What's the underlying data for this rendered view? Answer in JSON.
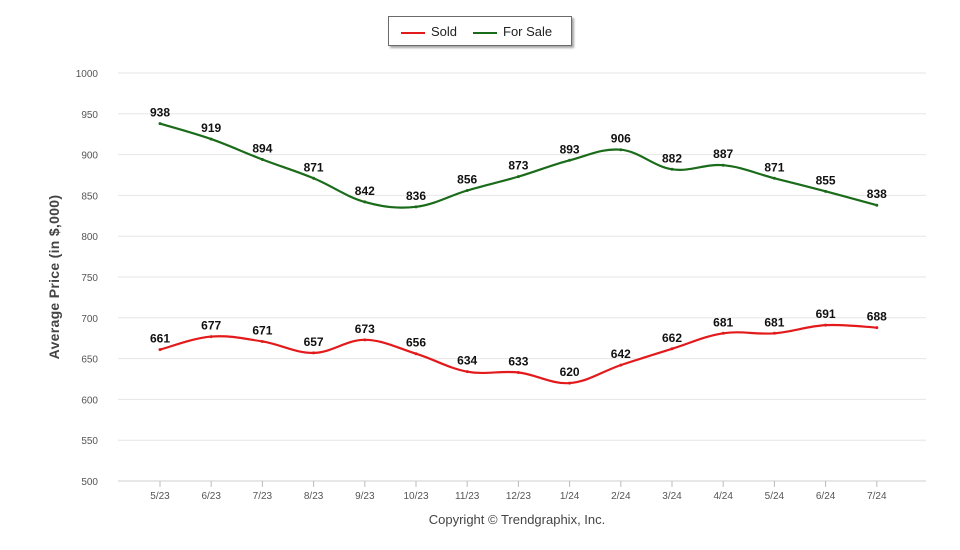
{
  "chart_data": {
    "type": "line",
    "categories": [
      "5/23",
      "6/23",
      "7/23",
      "8/23",
      "9/23",
      "10/23",
      "11/23",
      "12/23",
      "1/24",
      "2/24",
      "3/24",
      "4/24",
      "5/24",
      "6/24",
      "7/24"
    ],
    "series": [
      {
        "name": "Sold",
        "color": "#e31a1c",
        "values": [
          661,
          677,
          671,
          657,
          673,
          656,
          634,
          633,
          620,
          642,
          662,
          681,
          681,
          691,
          688
        ]
      },
      {
        "name": "For Sale",
        "color": "#1a6b1a",
        "values": [
          938,
          919,
          894,
          871,
          842,
          836,
          856,
          873,
          893,
          906,
          882,
          887,
          871,
          855,
          838
        ]
      }
    ],
    "xlabel": "",
    "ylabel": "Average Price (in $,000)",
    "ylim": [
      500,
      1000
    ],
    "yticks": [
      500,
      550,
      600,
      650,
      700,
      750,
      800,
      850,
      900,
      950,
      1000
    ],
    "grid": true,
    "legend_position": "top-center"
  },
  "footer": {
    "copyright": "Copyright © Trendgraphix, Inc."
  }
}
